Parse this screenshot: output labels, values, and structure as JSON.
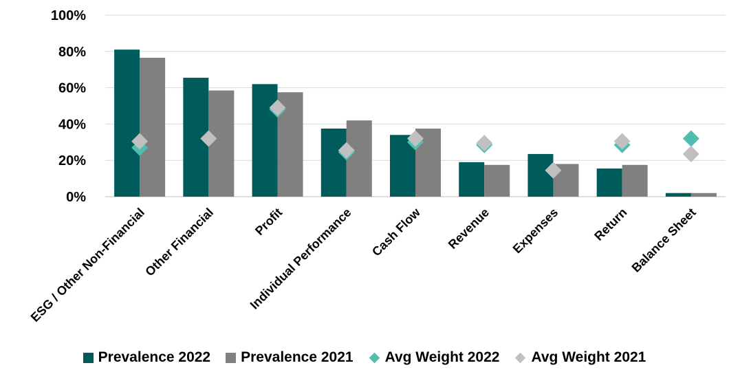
{
  "chart_data": {
    "type": "bar",
    "categories": [
      "ESG / Other Non-Financial",
      "Other Financial",
      "Profit",
      "Individual Performance",
      "Cash Flow",
      "Revenue",
      "Expenses",
      "Return",
      "Balance Sheet"
    ],
    "series": [
      {
        "name": "Prevalence 2022",
        "kind": "bar",
        "color": "#005C5A",
        "values": [
          81,
          65.5,
          62,
          37.5,
          34,
          19,
          23.5,
          15.5,
          2
        ]
      },
      {
        "name": "Prevalence 2021",
        "kind": "bar",
        "color": "#808080",
        "values": [
          76.5,
          58.5,
          57.5,
          42,
          37.5,
          17.5,
          18,
          17.5,
          2
        ]
      },
      {
        "name": "Avg Weight 2022",
        "kind": "diamond",
        "color": "#4FBDB0",
        "values": [
          27,
          32,
          48,
          24.5,
          30,
          28.5,
          14.5,
          28.5,
          32
        ]
      },
      {
        "name": "Avg Weight 2021",
        "kind": "diamond",
        "color": "#C0C0C0",
        "values": [
          30.5,
          32,
          49,
          25.5,
          32,
          29.5,
          14.5,
          30.5,
          23.5
        ]
      }
    ],
    "yticks": [
      "0%",
      "20%",
      "40%",
      "60%",
      "80%",
      "100%"
    ],
    "ylim": [
      0,
      100
    ],
    "grid": true,
    "legend_position": "bottom"
  }
}
